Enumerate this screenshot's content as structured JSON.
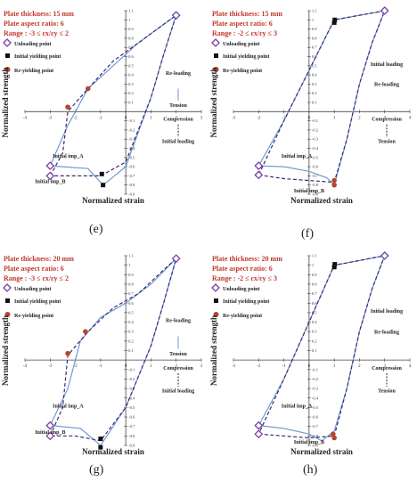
{
  "panels": [
    {
      "id": "e",
      "label": "(e)",
      "info": [
        "Plate thickness: 15 mm",
        "Plate aspect ratio: 6",
        "Range : -3 ≤ εx/εy ≤ 2"
      ],
      "xlim": [
        -4,
        3
      ],
      "xticks": [
        -4,
        -3,
        -2,
        -1,
        0,
        1,
        2,
        3
      ],
      "ylim": [
        -0.9,
        1.1
      ],
      "yticks": [
        -0.9,
        -0.8,
        -0.7,
        -0.6,
        -0.5,
        -0.4,
        -0.3,
        -0.2,
        -0.1,
        0.1,
        0.2,
        0.3,
        0.4,
        0.5,
        0.6,
        0.7,
        0.8,
        0.9,
        1,
        1.1
      ],
      "xlabel": "Normalized strain",
      "ylabel": "Normalized strength",
      "legend": [
        "Unloading point",
        "Initial yielding point",
        "Re-yielding point"
      ],
      "annotations": [
        "Re-loading",
        "Tension",
        "Compression",
        "Initial loading",
        "Initial imp_A",
        "Initial imp_B"
      ],
      "chart_data": {
        "type": "line",
        "series": [
          {
            "name": "Initial imp_A",
            "style": "solid",
            "points": [
              [
                -3,
                -0.59
              ],
              [
                -2.3,
                -0.15
              ],
              [
                -1.5,
                0.25
              ],
              [
                -0.5,
                0.5
              ],
              [
                0.5,
                0.75
              ],
              [
                1.5,
                0.95
              ],
              [
                2,
                1.05
              ],
              [
                1.5,
                0.62
              ],
              [
                1,
                0.15
              ],
              [
                0,
                -0.6
              ],
              [
                -0.9,
                -0.8
              ],
              [
                -1.5,
                -0.62
              ],
              [
                -3,
                -0.59
              ]
            ]
          },
          {
            "name": "Initial imp_B",
            "style": "dashed",
            "points": [
              [
                -3,
                -0.7
              ],
              [
                -2.5,
                -0.45
              ],
              [
                -2.3,
                0
              ],
              [
                -1.5,
                0.25
              ],
              [
                -0.5,
                0.55
              ],
              [
                0.5,
                0.75
              ],
              [
                1.5,
                0.95
              ],
              [
                2,
                1.05
              ],
              [
                1.5,
                0.62
              ],
              [
                1,
                0.15
              ],
              [
                0,
                -0.55
              ],
              [
                -1,
                -0.7
              ],
              [
                -2,
                -0.7
              ],
              [
                -3,
                -0.7
              ]
            ]
          }
        ],
        "markers": {
          "unloading": [
            [
              2,
              1.05
            ],
            [
              -3,
              -0.59
            ],
            [
              -3,
              -0.7
            ]
          ],
          "initial_yielding": [
            [
              -0.95,
              -0.68
            ],
            [
              -0.9,
              -0.8
            ]
          ],
          "re_yielding": [
            [
              -2.3,
              0.05
            ],
            [
              -1.5,
              0.25
            ]
          ]
        }
      }
    },
    {
      "id": "f",
      "label": "(f)",
      "info": [
        "Plate thickness: 15 mm",
        "Plate aspect ratio: 6",
        "Range : -2 ≤ εx/εy ≤ 3"
      ],
      "xlim": [
        -3,
        4
      ],
      "xticks": [
        -3,
        -2,
        -1,
        0,
        1,
        2,
        3,
        4
      ],
      "ylim": [
        -0.9,
        1.1
      ],
      "yticks": [
        -0.9,
        -0.8,
        -0.7,
        -0.6,
        -0.5,
        -0.4,
        -0.3,
        -0.2,
        -0.1,
        0.1,
        0.2,
        0.3,
        0.4,
        0.5,
        0.6,
        0.7,
        0.8,
        0.9,
        1,
        1.1
      ],
      "xlabel": "Normalized strain",
      "ylabel": "Normalized strength",
      "legend": [
        "Unloading point",
        "Initial yielding point",
        "Re-yielding point"
      ],
      "annotations": [
        "Initial loading",
        "Re-loading",
        "Compression",
        "Tension",
        "Initial imp_A",
        "Initial imp_B"
      ],
      "chart_data": {
        "type": "line",
        "series": [
          {
            "name": "Initial imp_A",
            "style": "solid",
            "points": [
              [
                -2,
                -0.59
              ],
              [
                -1,
                -0.6
              ],
              [
                0,
                -0.65
              ],
              [
                0.7,
                -0.72
              ],
              [
                1,
                -0.8
              ],
              [
                1.5,
                -0.3
              ],
              [
                2,
                0.3
              ],
              [
                2.5,
                0.75
              ],
              [
                3,
                1.1
              ],
              [
                1,
                1.0
              ],
              [
                -1,
                -0.1
              ],
              [
                -2,
                -0.59
              ]
            ]
          },
          {
            "name": "Initial imp_B",
            "style": "dashed",
            "points": [
              [
                -2,
                -0.69
              ],
              [
                -1,
                -0.73
              ],
              [
                0,
                -0.75
              ],
              [
                1,
                -0.77
              ],
              [
                1.5,
                -0.3
              ],
              [
                2,
                0.3
              ],
              [
                2.5,
                0.75
              ],
              [
                3,
                1.1
              ],
              [
                1,
                1.0
              ],
              [
                -1,
                -0.1
              ],
              [
                -2,
                -0.69
              ]
            ]
          }
        ],
        "markers": {
          "unloading": [
            [
              3,
              1.1
            ],
            [
              -2,
              -0.59
            ],
            [
              -2,
              -0.69
            ]
          ],
          "initial_yielding": [
            [
              1,
              0.97
            ],
            [
              1.02,
              1.0
            ]
          ],
          "re_yielding": [
            [
              1,
              -0.75
            ],
            [
              1,
              -0.8
            ]
          ]
        }
      }
    },
    {
      "id": "g",
      "label": "(g)",
      "info": [
        "Plate thickness: 20 mm",
        "Plate aspect ratio: 6",
        "Range : -3 ≤ εx/εy ≤ 2"
      ],
      "xlim": [
        -4,
        3
      ],
      "xticks": [
        -4,
        -3,
        -2,
        -1,
        0,
        1,
        2,
        3
      ],
      "ylim": [
        -0.9,
        1.1
      ],
      "yticks": [
        -0.9,
        -0.8,
        -0.7,
        -0.6,
        -0.5,
        -0.4,
        -0.3,
        -0.2,
        -0.1,
        0.1,
        0.2,
        0.3,
        0.4,
        0.5,
        0.6,
        0.7,
        0.8,
        0.9,
        1,
        1.1
      ],
      "xlabel": "Normalized strain",
      "ylabel": "Normalized strength",
      "legend": [
        "Unloading point",
        "Initial yielding point",
        "Re-yielding point"
      ],
      "annotations": [
        "Re-loading",
        "Tension",
        "Compression",
        "Initial loading",
        "Initial imp_A",
        "Initial imp_B"
      ],
      "chart_data": {
        "type": "line",
        "series": [
          {
            "name": "Initial imp_A",
            "style": "solid",
            "points": [
              [
                -3,
                -0.69
              ],
              [
                -2.3,
                -0.3
              ],
              [
                -1.8,
                0.2
              ],
              [
                -1,
                0.45
              ],
              [
                0,
                0.6
              ],
              [
                1,
                0.8
              ],
              [
                2,
                1.07
              ],
              [
                1.5,
                0.6
              ],
              [
                1,
                0.15
              ],
              [
                0,
                -0.5
              ],
              [
                -1,
                -0.9
              ],
              [
                -1.8,
                -0.72
              ],
              [
                -3,
                -0.69
              ]
            ]
          },
          {
            "name": "Initial imp_B",
            "style": "dashed",
            "points": [
              [
                -3,
                -0.8
              ],
              [
                -2.5,
                -0.5
              ],
              [
                -2.3,
                0.05
              ],
              [
                -1.5,
                0.3
              ],
              [
                -0.5,
                0.55
              ],
              [
                0.5,
                0.7
              ],
              [
                1.5,
                0.95
              ],
              [
                2,
                1.07
              ],
              [
                1.5,
                0.6
              ],
              [
                1,
                0.15
              ],
              [
                0,
                -0.5
              ],
              [
                -1,
                -0.85
              ],
              [
                -2,
                -0.8
              ],
              [
                -3,
                -0.8
              ]
            ]
          }
        ],
        "markers": {
          "unloading": [
            [
              2,
              1.07
            ],
            [
              -3,
              -0.69
            ],
            [
              -3,
              -0.8
            ]
          ],
          "initial_yielding": [
            [
              -1,
              -0.83
            ],
            [
              -1,
              -0.92
            ]
          ],
          "re_yielding": [
            [
              -2.3,
              0.07
            ],
            [
              -1.6,
              0.3
            ]
          ]
        }
      }
    },
    {
      "id": "h",
      "label": "(h)",
      "info": [
        "Plate thickness: 20 mm",
        "Plate aspect ratio: 6",
        "Range : -2 ≤ εx/εy ≤ 3"
      ],
      "xlim": [
        -3,
        4
      ],
      "xticks": [
        -3,
        -2,
        -1,
        0,
        1,
        2,
        3,
        4
      ],
      "ylim": [
        -0.9,
        1.1
      ],
      "yticks": [
        -0.9,
        -0.8,
        -0.7,
        -0.6,
        -0.5,
        -0.4,
        -0.3,
        -0.2,
        -0.1,
        0.1,
        0.2,
        0.3,
        0.4,
        0.5,
        0.6,
        0.7,
        0.8,
        0.9,
        1,
        1.1
      ],
      "xlabel": "Normalized strain",
      "ylabel": "Normalized strength",
      "legend": [
        "Unloading point",
        "Initial yielding point",
        "Re-yielding point"
      ],
      "annotations": [
        "Initial loading",
        "Re-loading",
        "Compression",
        "Tension",
        "Initial imp_A",
        "Initial imp_B"
      ],
      "chart_data": {
        "type": "line",
        "series": [
          {
            "name": "Initial imp_A",
            "style": "solid",
            "points": [
              [
                -2,
                -0.69
              ],
              [
                -1,
                -0.72
              ],
              [
                0,
                -0.78
              ],
              [
                0.5,
                -0.85
              ],
              [
                1,
                -0.75
              ],
              [
                1.5,
                -0.3
              ],
              [
                2,
                0.3
              ],
              [
                2.5,
                0.75
              ],
              [
                3,
                1.1
              ],
              [
                1,
                1.0
              ],
              [
                -1,
                -0.2
              ],
              [
                -2,
                -0.69
              ]
            ]
          },
          {
            "name": "Initial imp_B",
            "style": "dashed",
            "points": [
              [
                -2,
                -0.78
              ],
              [
                -1,
                -0.8
              ],
              [
                0,
                -0.82
              ],
              [
                1,
                -0.8
              ],
              [
                1.5,
                -0.3
              ],
              [
                2,
                0.3
              ],
              [
                2.5,
                0.75
              ],
              [
                3,
                1.1
              ],
              [
                1,
                1.0
              ],
              [
                -1,
                -0.2
              ],
              [
                -2,
                -0.78
              ]
            ]
          }
        ],
        "markers": {
          "unloading": [
            [
              3,
              1.1
            ],
            [
              -2,
              -0.69
            ],
            [
              -2,
              -0.78
            ]
          ],
          "initial_yielding": [
            [
              1,
              0.98
            ],
            [
              1.02,
              1.01
            ]
          ],
          "re_yielding": [
            [
              0.95,
              -0.78
            ],
            [
              1,
              -0.82
            ]
          ]
        }
      }
    }
  ],
  "colors": {
    "solid": "#6d9bd1",
    "dashed": "#3b2a73",
    "unloading": "#7b3fa8",
    "yielding": "#111111",
    "reyield": "#b5452f",
    "info": "#c0392b",
    "arrow": "#6d9bd1"
  }
}
